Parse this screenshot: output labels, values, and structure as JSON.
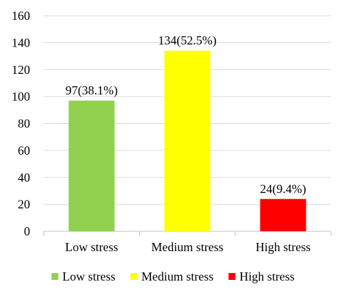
{
  "chart_data": {
    "type": "bar",
    "title": "",
    "xlabel": "",
    "ylabel": "",
    "ylim": [
      0,
      160
    ],
    "yticks": [
      0,
      20,
      40,
      60,
      80,
      100,
      120,
      140,
      160
    ],
    "grid": true,
    "legend_position": "bottom",
    "categories": [
      "Low stress",
      "Medium stress",
      "High stress"
    ],
    "values": [
      97,
      134,
      24
    ],
    "data_labels": [
      "97(38.1%)",
      "134(52.5%)",
      "24(9.4%)"
    ],
    "colors": [
      "#92d050",
      "#ffff00",
      "#ff0000"
    ],
    "legend": [
      "Low stress",
      "Medium stress",
      "High stress"
    ]
  }
}
